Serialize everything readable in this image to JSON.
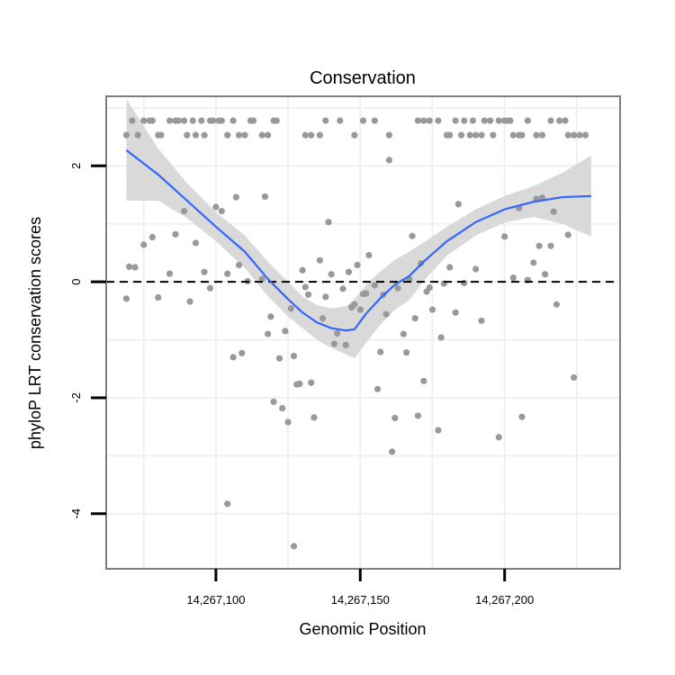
{
  "chart_data": {
    "type": "scatter",
    "title": "Conservation",
    "xlabel": "Genomic Position",
    "ylabel": "phyloP LRT conservation scores",
    "xlim": [
      14267062,
      14267240
    ],
    "ylim": [
      -4.95,
      3.2
    ],
    "x_ticks": [
      {
        "value": 14267100,
        "label": "14,267,100"
      },
      {
        "value": 14267150,
        "label": "14,267,150"
      },
      {
        "value": 14267200,
        "label": "14,267,200"
      }
    ],
    "y_ticks": [
      {
        "value": -4,
        "label": "-4"
      },
      {
        "value": -2,
        "label": "-2"
      },
      {
        "value": 0,
        "label": "0"
      },
      {
        "value": 2,
        "label": "2"
      }
    ],
    "reference_line": {
      "y": 0,
      "style": "dashed"
    },
    "colors": {
      "points": "#999999",
      "smooth": "#3366FF",
      "ribbon": "#d9d9d9",
      "grid": "#f0f0f0",
      "border": "#7f7f7f",
      "reference": "#000000"
    },
    "series": [
      {
        "name": "scores",
        "points": [
          [
            14267069,
            2.53
          ],
          [
            14267071,
            2.78
          ],
          [
            14267073,
            2.53
          ],
          [
            14267075,
            2.78
          ],
          [
            14267077,
            2.78
          ],
          [
            14267078,
            2.78
          ],
          [
            14267080,
            2.53
          ],
          [
            14267081,
            2.53
          ],
          [
            14267084,
            2.78
          ],
          [
            14267086,
            2.78
          ],
          [
            14267087,
            2.78
          ],
          [
            14267089,
            2.78
          ],
          [
            14267090,
            2.53
          ],
          [
            14267092,
            2.78
          ],
          [
            14267093,
            2.53
          ],
          [
            14267095,
            2.78
          ],
          [
            14267096,
            2.53
          ],
          [
            14267098,
            2.78
          ],
          [
            14267099,
            2.78
          ],
          [
            14267101,
            2.78
          ],
          [
            14267102,
            2.78
          ],
          [
            14267104,
            2.53
          ],
          [
            14267106,
            2.78
          ],
          [
            14267108,
            2.53
          ],
          [
            14267110,
            2.53
          ],
          [
            14267112,
            2.78
          ],
          [
            14267113,
            2.78
          ],
          [
            14267116,
            2.53
          ],
          [
            14267118,
            2.53
          ],
          [
            14267120,
            2.78
          ],
          [
            14267121,
            2.78
          ],
          [
            14267069,
            -0.29
          ],
          [
            14267070,
            0.26
          ],
          [
            14267072,
            0.25
          ],
          [
            14267075,
            0.64
          ],
          [
            14267078,
            0.77
          ],
          [
            14267080,
            -0.27
          ],
          [
            14267084,
            0.14
          ],
          [
            14267086,
            0.82
          ],
          [
            14267089,
            1.22
          ],
          [
            14267091,
            -0.34
          ],
          [
            14267093,
            0.67
          ],
          [
            14267096,
            0.17
          ],
          [
            14267098,
            -0.11
          ],
          [
            14267100,
            1.29
          ],
          [
            14267102,
            1.22
          ],
          [
            14267104,
            0.14
          ],
          [
            14267106,
            -1.3
          ],
          [
            14267107,
            1.46
          ],
          [
            14267108,
            0.29
          ],
          [
            14267109,
            -1.23
          ],
          [
            14267111,
            0.01
          ],
          [
            14267116,
            0.05
          ],
          [
            14267117,
            1.47
          ],
          [
            14267118,
            -0.9
          ],
          [
            14267119,
            -0.6
          ],
          [
            14267120,
            -2.07
          ],
          [
            14267122,
            -1.32
          ],
          [
            14267123,
            -2.18
          ],
          [
            14267124,
            -0.85
          ],
          [
            14267125,
            -2.42
          ],
          [
            14267126,
            -0.46
          ],
          [
            14267127,
            -1.28
          ],
          [
            14267128,
            -1.77
          ],
          [
            14267129,
            -1.76
          ],
          [
            14267130,
            0.2
          ],
          [
            14267131,
            -0.09
          ],
          [
            14267132,
            -0.22
          ],
          [
            14267133,
            -1.74
          ],
          [
            14267134,
            -2.34
          ],
          [
            14267136,
            0.37
          ],
          [
            14267137,
            -0.63
          ],
          [
            14267138,
            -0.26
          ],
          [
            14267139,
            1.03
          ],
          [
            14267140,
            0.13
          ],
          [
            14267141,
            -1.07
          ],
          [
            14267142,
            -0.89
          ],
          [
            14267144,
            -0.12
          ],
          [
            14267145,
            -1.09
          ],
          [
            14267146,
            0.17
          ],
          [
            14267147,
            -0.44
          ],
          [
            14267148,
            -0.39
          ],
          [
            14267149,
            0.29
          ],
          [
            14267150,
            -0.48
          ],
          [
            14267151,
            -0.21
          ],
          [
            14267152,
            -0.2
          ],
          [
            14267153,
            0.46
          ],
          [
            14267155,
            -0.06
          ],
          [
            14267156,
            -1.85
          ],
          [
            14267157,
            -1.21
          ],
          [
            14267158,
            -0.22
          ],
          [
            14267159,
            -0.56
          ],
          [
            14267160,
            2.1
          ],
          [
            14267161,
            -2.93
          ],
          [
            14267162,
            -2.35
          ],
          [
            14267163,
            -0.11
          ],
          [
            14267165,
            -0.9
          ],
          [
            14267166,
            -1.22
          ],
          [
            14267167,
            0.04
          ],
          [
            14267168,
            0.79
          ],
          [
            14267169,
            -0.63
          ],
          [
            14267170,
            -2.31
          ],
          [
            14267171,
            0.32
          ],
          [
            14267172,
            -1.71
          ],
          [
            14267173,
            -0.17
          ],
          [
            14267174,
            -0.1
          ],
          [
            14267175,
            -0.48
          ],
          [
            14267177,
            -2.56
          ],
          [
            14267178,
            -0.96
          ],
          [
            14267179,
            -0.03
          ],
          [
            14267181,
            0.25
          ],
          [
            14267183,
            -0.53
          ],
          [
            14267184,
            1.34
          ],
          [
            14267186,
            -0.02
          ],
          [
            14267190,
            0.22
          ],
          [
            14267192,
            -0.67
          ],
          [
            14267198,
            -2.68
          ],
          [
            14267200,
            0.78
          ],
          [
            14267203,
            0.07
          ],
          [
            14267205,
            1.27
          ],
          [
            14267206,
            -2.33
          ],
          [
            14267208,
            0.03
          ],
          [
            14267210,
            0.33
          ],
          [
            14267211,
            1.43
          ],
          [
            14267212,
            0.62
          ],
          [
            14267213,
            1.45
          ],
          [
            14267214,
            0.13
          ],
          [
            14267216,
            0.62
          ],
          [
            14267217,
            1.21
          ],
          [
            14267218,
            -0.39
          ],
          [
            14267222,
            0.81
          ],
          [
            14267224,
            -1.65
          ],
          [
            14267127,
            -4.56
          ],
          [
            14267104,
            -3.83
          ],
          [
            14267131,
            2.53
          ],
          [
            14267133,
            2.53
          ],
          [
            14267136,
            2.53
          ],
          [
            14267138,
            2.78
          ],
          [
            14267143,
            2.78
          ],
          [
            14267148,
            2.53
          ],
          [
            14267151,
            2.78
          ],
          [
            14267155,
            2.78
          ],
          [
            14267160,
            2.53
          ],
          [
            14267170,
            2.78
          ],
          [
            14267172,
            2.78
          ],
          [
            14267174,
            2.78
          ],
          [
            14267177,
            2.78
          ],
          [
            14267180,
            2.53
          ],
          [
            14267181,
            2.53
          ],
          [
            14267183,
            2.78
          ],
          [
            14267185,
            2.53
          ],
          [
            14267186,
            2.78
          ],
          [
            14267188,
            2.53
          ],
          [
            14267189,
            2.78
          ],
          [
            14267190,
            2.53
          ],
          [
            14267192,
            2.53
          ],
          [
            14267193,
            2.78
          ],
          [
            14267195,
            2.78
          ],
          [
            14267196,
            2.53
          ],
          [
            14267198,
            2.78
          ],
          [
            14267200,
            2.78
          ],
          [
            14267201,
            2.78
          ],
          [
            14267202,
            2.78
          ],
          [
            14267203,
            2.53
          ],
          [
            14267205,
            2.53
          ],
          [
            14267206,
            2.53
          ],
          [
            14267208,
            2.78
          ],
          [
            14267211,
            2.53
          ],
          [
            14267213,
            2.53
          ],
          [
            14267216,
            2.78
          ],
          [
            14267219,
            2.78
          ],
          [
            14267221,
            2.78
          ],
          [
            14267222,
            2.53
          ],
          [
            14267224,
            2.53
          ],
          [
            14267226,
            2.53
          ],
          [
            14267228,
            2.53
          ]
        ]
      },
      {
        "name": "loess smooth",
        "line": [
          [
            14267069,
            2.27
          ],
          [
            14267080,
            1.85
          ],
          [
            14267090,
            1.4
          ],
          [
            14267100,
            0.95
          ],
          [
            14267110,
            0.52
          ],
          [
            14267118,
            0.05
          ],
          [
            14267125,
            -0.3
          ],
          [
            14267130,
            -0.53
          ],
          [
            14267135,
            -0.7
          ],
          [
            14267140,
            -0.8
          ],
          [
            14267145,
            -0.84
          ],
          [
            14267148,
            -0.82
          ],
          [
            14267152,
            -0.55
          ],
          [
            14267157,
            -0.28
          ],
          [
            14267162,
            -0.05
          ],
          [
            14267167,
            0.1
          ],
          [
            14267172,
            0.35
          ],
          [
            14267180,
            0.7
          ],
          [
            14267190,
            1.03
          ],
          [
            14267200,
            1.25
          ],
          [
            14267210,
            1.38
          ],
          [
            14267220,
            1.46
          ],
          [
            14267230,
            1.48
          ]
        ],
        "ci_upper": [
          [
            14267069,
            3.15
          ],
          [
            14267080,
            2.3
          ],
          [
            14267090,
            1.7
          ],
          [
            14267100,
            1.2
          ],
          [
            14267110,
            0.8
          ],
          [
            14267118,
            0.35
          ],
          [
            14267125,
            0.0
          ],
          [
            14267130,
            -0.25
          ],
          [
            14267135,
            -0.4
          ],
          [
            14267140,
            -0.46
          ],
          [
            14267145,
            -0.42
          ],
          [
            14267148,
            -0.3
          ],
          [
            14267152,
            -0.05
          ],
          [
            14267157,
            0.18
          ],
          [
            14267162,
            0.38
          ],
          [
            14267167,
            0.52
          ],
          [
            14267172,
            0.68
          ],
          [
            14267180,
            0.95
          ],
          [
            14267190,
            1.25
          ],
          [
            14267200,
            1.48
          ],
          [
            14267210,
            1.65
          ],
          [
            14267220,
            1.88
          ],
          [
            14267230,
            2.18
          ]
        ],
        "ci_lower": [
          [
            14267069,
            1.4
          ],
          [
            14267080,
            1.4
          ],
          [
            14267090,
            1.1
          ],
          [
            14267100,
            0.7
          ],
          [
            14267110,
            0.24
          ],
          [
            14267118,
            -0.25
          ],
          [
            14267125,
            -0.6
          ],
          [
            14267130,
            -0.8
          ],
          [
            14267135,
            -1.0
          ],
          [
            14267140,
            -1.14
          ],
          [
            14267145,
            -1.25
          ],
          [
            14267148,
            -1.32
          ],
          [
            14267152,
            -1.05
          ],
          [
            14267157,
            -0.74
          ],
          [
            14267162,
            -0.48
          ],
          [
            14267167,
            -0.32
          ],
          [
            14267172,
            0.02
          ],
          [
            14267180,
            0.45
          ],
          [
            14267190,
            0.8
          ],
          [
            14267200,
            1.02
          ],
          [
            14267210,
            1.12
          ],
          [
            14267220,
            1.0
          ],
          [
            14267230,
            0.78
          ]
        ]
      }
    ]
  }
}
